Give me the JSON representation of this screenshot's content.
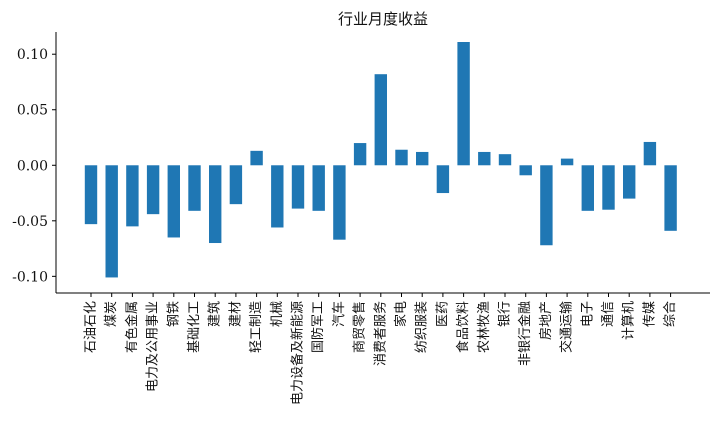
{
  "chart_data": {
    "type": "bar",
    "title": "行业月度收益",
    "xlabel": "",
    "ylabel": "",
    "ylim": [
      -0.115,
      0.12
    ],
    "yticks": [
      -0.1,
      -0.05,
      0.0,
      0.05,
      0.1
    ],
    "ytick_labels": [
      "-0.10",
      "-0.05",
      "0.00",
      "0.05",
      "0.10"
    ],
    "grid": false,
    "bar_color": "#1f77b4",
    "categories": [
      "石油石化",
      "煤炭",
      "有色金属",
      "电力及公用事业",
      "钢铁",
      "基础化工",
      "建筑",
      "建材",
      "轻工制造",
      "机械",
      "电力设备及新能源",
      "国防军工",
      "汽车",
      "商贸零售",
      "消费者服务",
      "家电",
      "纺织服装",
      "医药",
      "食品饮料",
      "农林牧渔",
      "银行",
      "非银行金融",
      "房地产",
      "交通运输",
      "电子",
      "通信",
      "计算机",
      "传媒",
      "综合"
    ],
    "values": [
      -0.053,
      -0.101,
      -0.055,
      -0.044,
      -0.065,
      -0.041,
      -0.07,
      -0.035,
      0.013,
      -0.056,
      -0.039,
      -0.041,
      -0.067,
      0.02,
      0.082,
      0.014,
      0.012,
      -0.025,
      0.111,
      0.012,
      0.01,
      -0.009,
      -0.072,
      0.006,
      -0.041,
      -0.04,
      -0.03,
      0.021,
      -0.059
    ]
  }
}
